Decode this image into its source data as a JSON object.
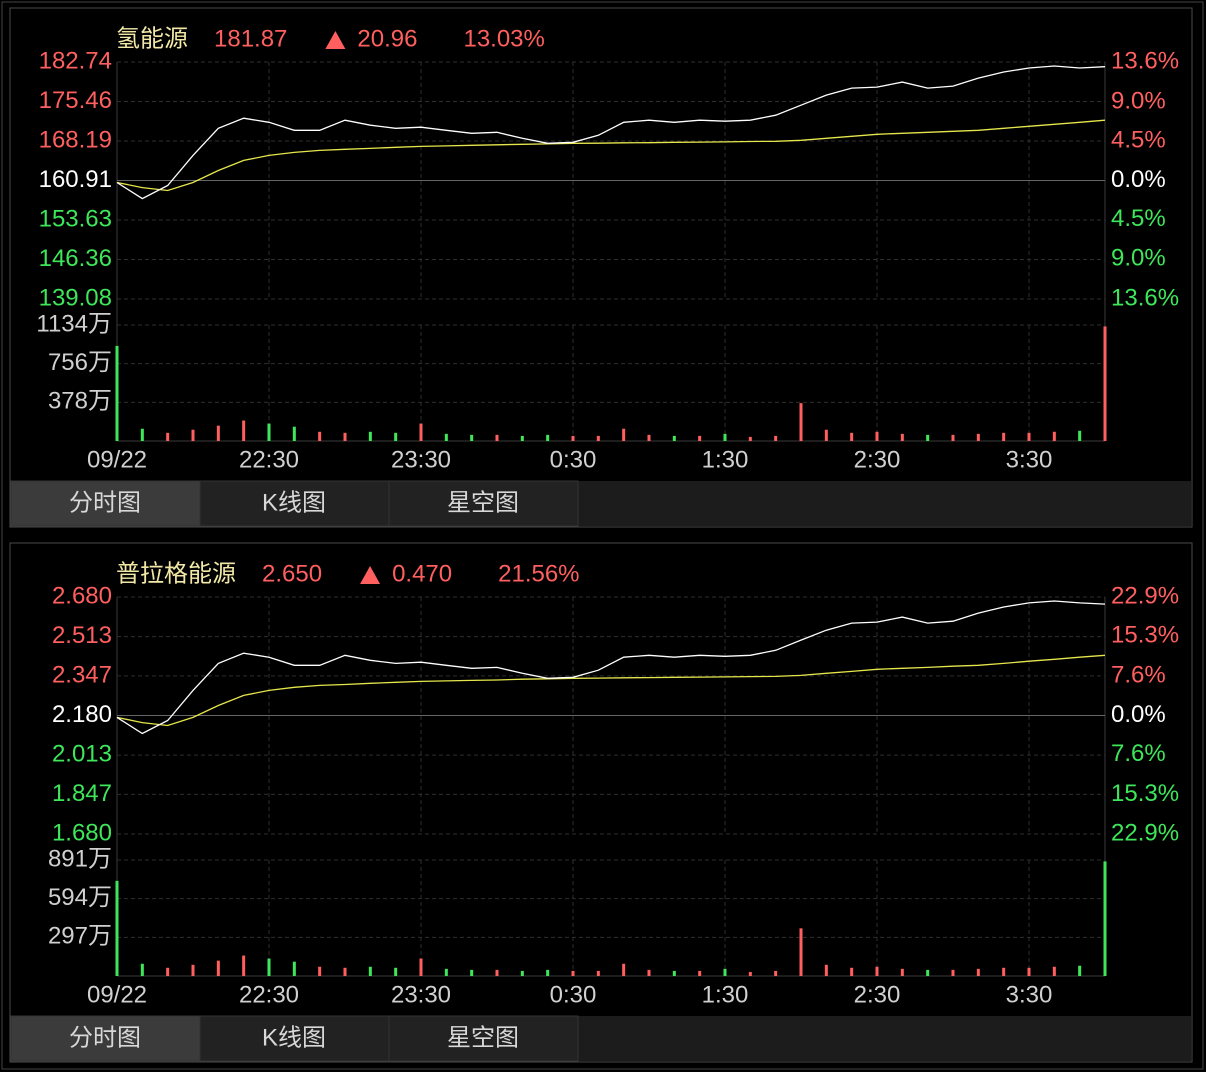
{
  "chart_data": [
    {
      "type": "line",
      "title": "氢能源",
      "last": "181.87",
      "change": "20.96",
      "change_pct": "13.03%",
      "up_color": "#ff5f5f",
      "down_color": "#3ee65a",
      "flat_color": "#ffffff",
      "grid": true,
      "x": [
        0,
        10,
        20,
        30,
        40,
        50,
        60,
        70,
        80,
        90,
        100,
        110,
        120,
        130,
        140,
        150,
        160,
        170,
        180,
        190,
        200,
        210,
        220,
        230,
        240,
        250,
        260,
        270,
        280,
        290,
        300,
        310,
        320,
        330,
        340,
        350,
        360,
        370,
        380,
        390
      ],
      "xlim": [
        0,
        390
      ],
      "xticks": [
        {
          "value": 0,
          "label": "09/22"
        },
        {
          "value": 60,
          "label": "22:30"
        },
        {
          "value": 120,
          "label": "23:30"
        },
        {
          "value": 180,
          "label": "0:30"
        },
        {
          "value": 240,
          "label": "1:30"
        },
        {
          "value": 300,
          "label": "2:30"
        },
        {
          "value": 360,
          "label": "3:30"
        }
      ],
      "ylim": [
        139.08,
        182.74
      ],
      "yticks": [
        182.74,
        175.46,
        168.19,
        160.91,
        153.63,
        146.36,
        139.08
      ],
      "y2lim": [
        -13.6,
        13.6
      ],
      "y2ticks": [
        {
          "value": 13.6,
          "label": "13.6%"
        },
        {
          "value": 9,
          "label": "9.0%"
        },
        {
          "value": 4.5,
          "label": "4.5%"
        },
        {
          "value": 0,
          "label": "0.0%"
        },
        {
          "value": -4.5,
          "label": "4.5%"
        },
        {
          "value": -9,
          "label": "9.0%"
        },
        {
          "value": -13.6,
          "label": "13.6%"
        }
      ],
      "series": [
        {
          "color": "#ffffff",
          "values": [
            160.54,
            157.58,
            159.99,
            165.54,
            170.53,
            172.38,
            171.64,
            170.16,
            170.16,
            172.01,
            171.09,
            170.53,
            170.72,
            170.16,
            169.61,
            169.79,
            168.68,
            167.76,
            167.94,
            169.24,
            171.64,
            172.01,
            171.64,
            172.01,
            171.83,
            172.01,
            172.94,
            174.79,
            176.64,
            177.93,
            178.12,
            179.04,
            177.93,
            178.3,
            179.78,
            180.89,
            181.63,
            182.0,
            181.63,
            181.87
          ]
        },
        {
          "color": "#e6e64c",
          "values": [
            160.54,
            159.61,
            159.06,
            160.54,
            162.76,
            164.61,
            165.54,
            166.09,
            166.46,
            166.65,
            166.83,
            167.02,
            167.2,
            167.29,
            167.39,
            167.48,
            167.57,
            167.66,
            167.76,
            167.79,
            167.85,
            167.88,
            167.94,
            167.98,
            168.03,
            168.09,
            168.13,
            168.31,
            168.68,
            169.05,
            169.42,
            169.61,
            169.79,
            169.98,
            170.16,
            170.53,
            170.9,
            171.27,
            171.64,
            172.01
          ]
        }
      ],
      "volume": {
        "ylim": [
          0,
          1134
        ],
        "yticks": [
          {
            "value": 1134,
            "label": "1134万"
          },
          {
            "value": 756,
            "label": "756万"
          },
          {
            "value": 378,
            "label": "378万"
          }
        ],
        "values": [
          930,
          120,
          80,
          110,
          150,
          200,
          170,
          140,
          90,
          80,
          90,
          80,
          170,
          70,
          60,
          60,
          50,
          60,
          50,
          50,
          120,
          60,
          50,
          50,
          70,
          40,
          50,
          370,
          110,
          80,
          90,
          70,
          60,
          60,
          70,
          80,
          80,
          90,
          100,
          1120
        ]
      },
      "tabs": [
        "分时图",
        "K线图",
        "星空图"
      ]
    },
    {
      "type": "line",
      "title": "普拉格能源",
      "last": "2.650",
      "change": "0.470",
      "change_pct": "21.56%",
      "up_color": "#ff5f5f",
      "down_color": "#3ee65a",
      "flat_color": "#ffffff",
      "grid": true,
      "x": [
        0,
        10,
        20,
        30,
        40,
        50,
        60,
        70,
        80,
        90,
        100,
        110,
        120,
        130,
        140,
        150,
        160,
        170,
        180,
        190,
        200,
        210,
        220,
        230,
        240,
        250,
        260,
        270,
        280,
        290,
        300,
        310,
        320,
        330,
        340,
        350,
        360,
        370,
        380,
        390
      ],
      "xlim": [
        0,
        390
      ],
      "xticks": [
        {
          "value": 0,
          "label": "09/22"
        },
        {
          "value": 60,
          "label": "22:30"
        },
        {
          "value": 120,
          "label": "23:30"
        },
        {
          "value": 180,
          "label": "0:30"
        },
        {
          "value": 240,
          "label": "1:30"
        },
        {
          "value": 300,
          "label": "2:30"
        },
        {
          "value": 360,
          "label": "3:30"
        }
      ],
      "ylim": [
        1.68,
        2.68
      ],
      "yticks": [
        {
          "value": 2.68,
          "label": "2.680"
        },
        {
          "value": 2.513,
          "label": "2.513"
        },
        {
          "value": 2.347,
          "label": "2.347"
        },
        {
          "value": 2.18,
          "label": "2.180"
        },
        {
          "value": 2.013,
          "label": "2.013"
        },
        {
          "value": 1.847,
          "label": "1.847"
        },
        {
          "value": 1.68,
          "label": "1.680"
        }
      ],
      "y2lim": [
        -22.9,
        22.9
      ],
      "y2ticks": [
        {
          "value": 22.9,
          "label": "22.9%"
        },
        {
          "value": 15.3,
          "label": "15.3%"
        },
        {
          "value": 7.6,
          "label": "7.6%"
        },
        {
          "value": 0,
          "label": "0.0%"
        },
        {
          "value": -7.6,
          "label": "7.6%"
        },
        {
          "value": -15.3,
          "label": "15.3%"
        },
        {
          "value": -22.9,
          "label": "22.9%"
        }
      ],
      "series": [
        {
          "color": "#ffffff",
          "values": [
            2.172,
            2.104,
            2.159,
            2.286,
            2.4,
            2.443,
            2.426,
            2.392,
            2.392,
            2.434,
            2.413,
            2.4,
            2.405,
            2.392,
            2.379,
            2.383,
            2.358,
            2.337,
            2.341,
            2.371,
            2.426,
            2.434,
            2.426,
            2.434,
            2.43,
            2.434,
            2.455,
            2.498,
            2.54,
            2.57,
            2.574,
            2.595,
            2.57,
            2.578,
            2.612,
            2.638,
            2.655,
            2.663,
            2.655,
            2.65
          ]
        },
        {
          "color": "#e6e64c",
          "values": [
            2.172,
            2.15,
            2.138,
            2.172,
            2.222,
            2.265,
            2.286,
            2.299,
            2.307,
            2.311,
            2.316,
            2.32,
            2.324,
            2.326,
            2.328,
            2.33,
            2.333,
            2.335,
            2.337,
            2.338,
            2.339,
            2.34,
            2.341,
            2.342,
            2.343,
            2.344,
            2.345,
            2.349,
            2.358,
            2.366,
            2.375,
            2.379,
            2.383,
            2.388,
            2.392,
            2.4,
            2.409,
            2.417,
            2.426,
            2.434
          ]
        }
      ],
      "volume": {
        "ylim": [
          0,
          891
        ],
        "yticks": [
          {
            "value": 891,
            "label": "891万"
          },
          {
            "value": 594,
            "label": "594万"
          },
          {
            "value": 297,
            "label": "297万"
          }
        ],
        "values": [
          731,
          94,
          63,
          86,
          118,
          157,
          134,
          110,
          71,
          63,
          71,
          63,
          134,
          55,
          47,
          47,
          39,
          47,
          39,
          39,
          94,
          47,
          39,
          39,
          55,
          31,
          39,
          366,
          86,
          63,
          71,
          55,
          47,
          47,
          55,
          63,
          63,
          71,
          79,
          880
        ]
      },
      "tabs": [
        "分时图",
        "K线图",
        "星空图"
      ]
    }
  ]
}
